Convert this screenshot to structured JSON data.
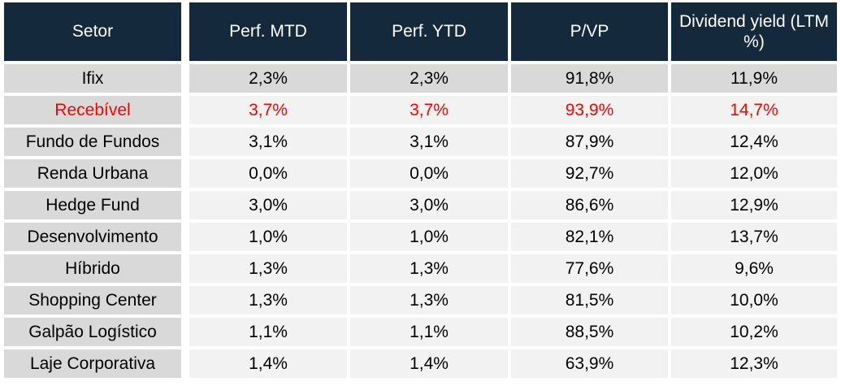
{
  "chart_data": {
    "type": "table",
    "title": "",
    "columns": [
      "Setor",
      "Perf. MTD",
      "Perf. YTD",
      "P/VP",
      "Dividend yield (LTM %)"
    ],
    "rows": [
      [
        "Ifix",
        "2,3%",
        "2,3%",
        "91,8%",
        "11,9%"
      ],
      [
        "Recebível",
        "3,7%",
        "3,7%",
        "93,9%",
        "14,7%"
      ],
      [
        "Fundo de Fundos",
        "3,1%",
        "3,1%",
        "87,9%",
        "12,4%"
      ],
      [
        "Renda Urbana",
        "0,0%",
        "0,0%",
        "92,7%",
        "12,0%"
      ],
      [
        "Hedge Fund",
        "3,0%",
        "3,0%",
        "86,6%",
        "12,9%"
      ],
      [
        "Desenvolvimento",
        "1,0%",
        "1,0%",
        "82,1%",
        "13,7%"
      ],
      [
        "Híbrido",
        "1,3%",
        "1,3%",
        "77,6%",
        "9,6%"
      ],
      [
        "Shopping Center",
        "1,3%",
        "1,3%",
        "81,5%",
        "10,0%"
      ],
      [
        "Galpão Logístico",
        "1,1%",
        "1,1%",
        "88,5%",
        "10,2%"
      ],
      [
        "Laje Corporativa",
        "1,4%",
        "1,4%",
        "63,9%",
        "12,3%"
      ]
    ],
    "gray_benchmark_row": "Ifix",
    "red_highlight_row": "Recebível",
    "layout_hints": {
      "grid": "white gaps between cells",
      "alignment": "all cells centered",
      "header_wrap": "last header wraps to two lines: Dividend yield / (LTM %)"
    }
  },
  "colors": {
    "header_bg": "#14293b",
    "header_text": "#ffffff",
    "row_gray": "#d9d9d9",
    "row_light": "#f2f2f2",
    "highlight_red": "#ff0000",
    "body_text": "#000000",
    "gap": "#ffffff"
  }
}
